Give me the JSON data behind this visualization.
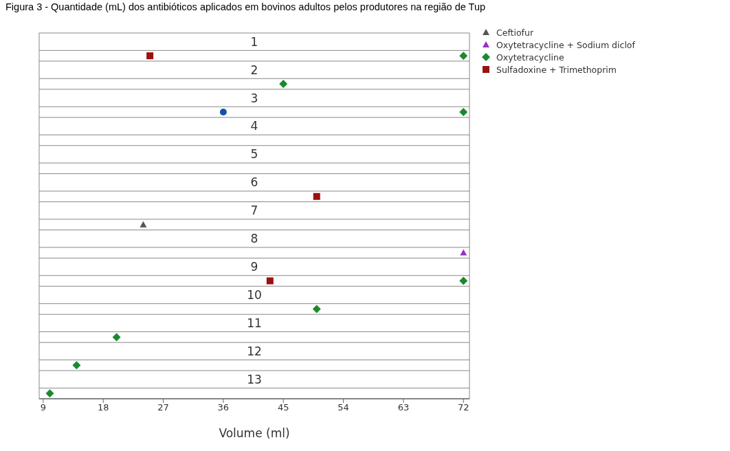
{
  "chart_data": {
    "type": "scatter",
    "title": "Figura 3 - Quantidade (mL) dos antibióticos aplicados em bovinos adultos pelos produtores na região de Tup",
    "xlabel": "Volume (ml)",
    "orientation": "horizontal",
    "categories": [
      "1",
      "2",
      "3",
      "4",
      "5",
      "6",
      "7",
      "8",
      "9",
      "10",
      "11",
      "12",
      "13"
    ],
    "xlim": [
      8.4,
      72.9
    ],
    "xticks": [
      9,
      18,
      27,
      36,
      45,
      54,
      63,
      72
    ],
    "grid": "y",
    "legend": "top right",
    "series": [
      {
        "name": "Ceftiofur",
        "color": "#555555",
        "marker": "triangle",
        "values": [
          null,
          null,
          null,
          null,
          null,
          null,
          24,
          null,
          null,
          null,
          null,
          null,
          null
        ]
      },
      {
        "name": "Oxytetracycline + Sodium diclof",
        "color": "#9a2fc8",
        "marker": "triangle",
        "values": [
          null,
          null,
          null,
          null,
          null,
          null,
          null,
          72,
          null,
          null,
          null,
          null,
          null
        ]
      },
      {
        "name": "Oxytetracycline",
        "color": "#1a8a2e",
        "marker": "diamond",
        "values": [
          72,
          45,
          72,
          null,
          null,
          null,
          null,
          null,
          72,
          50,
          20,
          14,
          10
        ]
      },
      {
        "name": "Sulfadoxine + Trimethoprim",
        "color": "#9b1010",
        "marker": "square",
        "values": [
          25,
          null,
          null,
          null,
          null,
          50,
          null,
          null,
          43,
          null,
          null,
          null,
          null
        ]
      },
      {
        "color": "#0d56a6",
        "marker": "circle",
        "values": [
          null,
          null,
          36,
          null,
          null,
          null,
          null,
          null,
          null,
          null,
          null,
          null,
          null
        ]
      }
    ]
  }
}
